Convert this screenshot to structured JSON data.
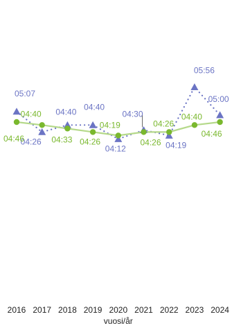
{
  "chart_data": {
    "type": "line",
    "x": [
      "2016",
      "2017",
      "2018",
      "2019",
      "2020",
      "2021",
      "2022",
      "2023",
      "2024"
    ],
    "xlabel": "vuosi/år",
    "ylabel": "",
    "series": [
      {
        "name": "",
        "style": "dotted",
        "marker": "triangle",
        "color": "#6b74c4",
        "values": [
          "05:07",
          "04:26",
          "04:40",
          "04:40",
          "04:12",
          "04:30",
          "04:19",
          "05:56",
          "05:00"
        ]
      },
      {
        "name": "",
        "style": "solid",
        "marker": "circle",
        "color": "#7ab82e",
        "line_color": "#b5d98a",
        "values": [
          "04:46",
          "04:40",
          "04:33",
          "04:26",
          "04:19",
          "04:26",
          "04:26",
          "04:40",
          "04:46"
        ]
      }
    ]
  }
}
